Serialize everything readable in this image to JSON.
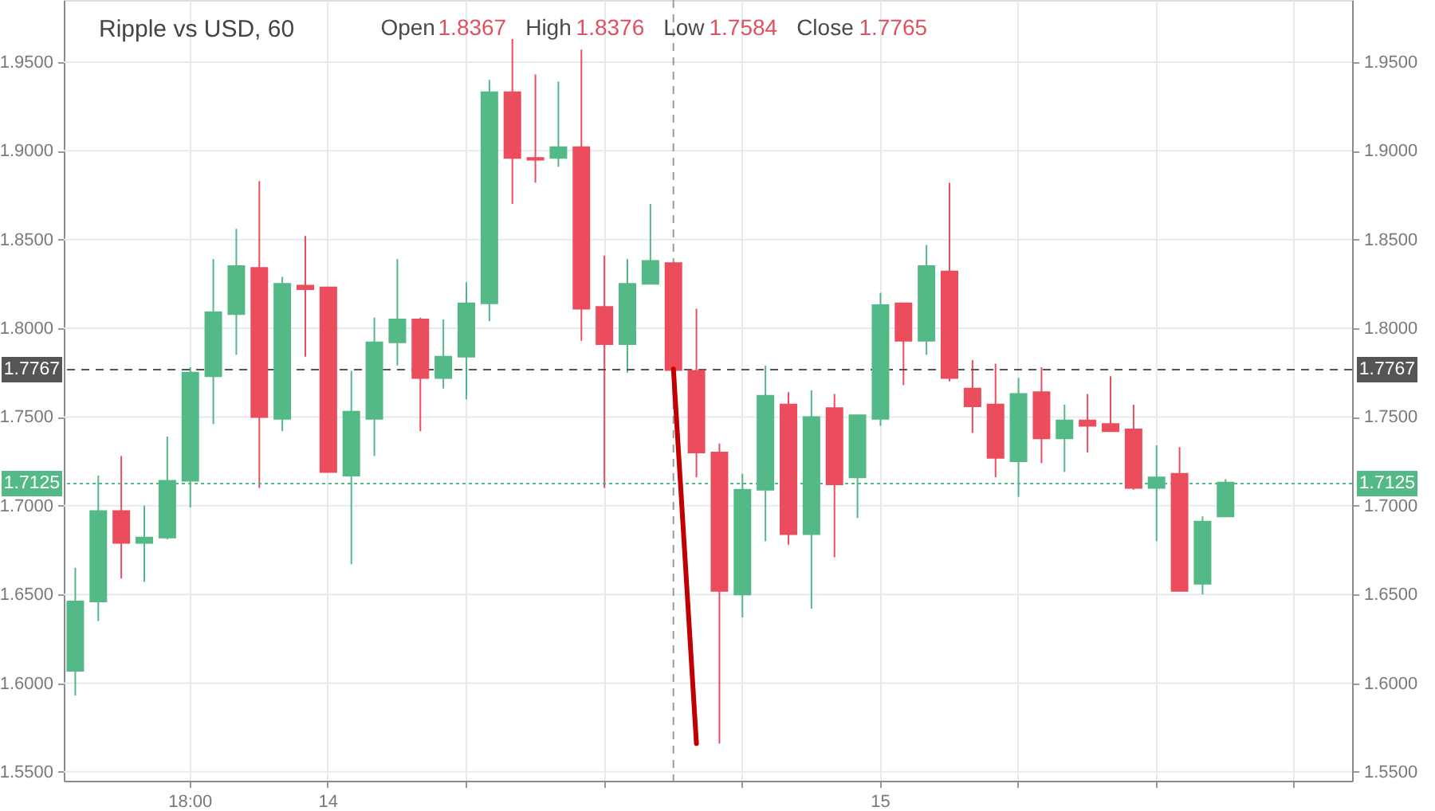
{
  "chart_data": {
    "type": "candlestick",
    "title": "Ripple vs USD, 60",
    "annotations": [
      "Open",
      "1.8367",
      "High",
      "1.8376",
      "Low",
      "1.7584",
      "Close",
      "1.7765"
    ],
    "categories": [
      null,
      null,
      null,
      null,
      null,
      "18:00",
      null,
      null,
      null,
      null,
      null,
      "14",
      null,
      null,
      null,
      null,
      null,
      null,
      null,
      null,
      null,
      null,
      null,
      null,
      null,
      null,
      null,
      null,
      null,
      null,
      null,
      null,
      null,
      null,
      null,
      "15",
      null,
      null,
      null,
      null,
      null,
      null,
      null,
      null,
      null,
      null,
      null,
      null,
      null,
      null,
      null,
      null,
      null,
      null,
      null,
      null
    ],
    "ohlc": [
      [
        1.607,
        1.665,
        1.593,
        1.646
      ],
      [
        1.646,
        1.717,
        1.635,
        1.697
      ],
      [
        1.697,
        1.728,
        1.659,
        1.679
      ],
      [
        1.679,
        1.7,
        1.657,
        1.682
      ],
      [
        1.682,
        1.739,
        1.681,
        1.714
      ],
      [
        1.714,
        1.778,
        1.699,
        1.775
      ],
      [
        1.773,
        1.839,
        1.746,
        1.809
      ],
      [
        1.808,
        1.856,
        1.785,
        1.835
      ],
      [
        1.834,
        1.883,
        1.71,
        1.75
      ],
      [
        1.749,
        1.829,
        1.742,
        1.825
      ],
      [
        1.824,
        1.852,
        1.784,
        1.822
      ],
      [
        1.823,
        1.823,
        1.719,
        1.719
      ],
      [
        1.717,
        1.776,
        1.667,
        1.753
      ],
      [
        1.749,
        1.806,
        1.728,
        1.792
      ],
      [
        1.792,
        1.839,
        1.779,
        1.805
      ],
      [
        1.805,
        1.806,
        1.742,
        1.772
      ],
      [
        1.772,
        1.805,
        1.766,
        1.784
      ],
      [
        1.784,
        1.826,
        1.76,
        1.814
      ],
      [
        1.814,
        1.94,
        1.804,
        1.933
      ],
      [
        1.933,
        1.963,
        1.87,
        1.896
      ],
      [
        1.896,
        1.943,
        1.882,
        1.895
      ],
      [
        1.896,
        1.939,
        1.891,
        1.902
      ],
      [
        1.902,
        1.957,
        1.793,
        1.811
      ],
      [
        1.812,
        1.841,
        1.71,
        1.791
      ],
      [
        1.791,
        1.839,
        1.775,
        1.825
      ],
      [
        1.825,
        1.87,
        1.825,
        1.838
      ],
      [
        1.8367,
        1.8376,
        1.7584,
        1.7765
      ],
      [
        1.776,
        1.811,
        1.716,
        1.73
      ],
      [
        1.73,
        1.735,
        1.566,
        1.652
      ],
      [
        1.65,
        1.718,
        1.637,
        1.709
      ],
      [
        1.709,
        1.779,
        1.68,
        1.762
      ],
      [
        1.757,
        1.764,
        1.678,
        1.684
      ],
      [
        1.684,
        1.765,
        1.642,
        1.75
      ],
      [
        1.755,
        1.763,
        1.671,
        1.712
      ],
      [
        1.716,
        1.751,
        1.693,
        1.751
      ],
      [
        1.749,
        1.82,
        1.745,
        1.813
      ],
      [
        1.814,
        1.814,
        1.768,
        1.793
      ],
      [
        1.793,
        1.847,
        1.785,
        1.835
      ],
      [
        1.832,
        1.882,
        1.77,
        1.772
      ],
      [
        1.766,
        1.782,
        1.741,
        1.756
      ],
      [
        1.757,
        1.78,
        1.716,
        1.727
      ],
      [
        1.725,
        1.772,
        1.705,
        1.763
      ],
      [
        1.764,
        1.778,
        1.724,
        1.738
      ],
      [
        1.738,
        1.757,
        1.719,
        1.748
      ],
      [
        1.748,
        1.763,
        1.73,
        1.745
      ],
      [
        1.746,
        1.773,
        1.742,
        1.742
      ],
      [
        1.743,
        1.757,
        1.709,
        1.71
      ],
      [
        1.71,
        1.734,
        1.68,
        1.716
      ],
      [
        1.718,
        1.733,
        1.652,
        1.652
      ],
      [
        1.656,
        1.694,
        1.65,
        1.691
      ],
      [
        1.694,
        1.715,
        1.694,
        1.713
      ],
      null,
      null,
      null,
      null,
      null
    ],
    "colors": [
      "#53b987",
      "#53b987",
      "#eb4d5c",
      "#53b987",
      "#53b987",
      "#53b987",
      "#53b987",
      "#53b987",
      "#eb4d5c",
      "#53b987",
      "#eb4d5c",
      "#eb4d5c",
      "#53b987",
      "#53b987",
      "#53b987",
      "#eb4d5c",
      "#53b987",
      "#53b987",
      "#53b987",
      "#eb4d5c",
      "#eb4d5c",
      "#53b987",
      "#eb4d5c",
      "#eb4d5c",
      "#53b987",
      "#53b987",
      "#eb4d5c",
      "#eb4d5c",
      "#eb4d5c",
      "#53b987",
      "#53b987",
      "#eb4d5c",
      "#53b987",
      "#eb4d5c",
      "#53b987",
      "#53b987",
      "#eb4d5c",
      "#53b987",
      "#eb4d5c",
      "#eb4d5c",
      "#eb4d5c",
      "#53b987",
      "#eb4d5c",
      "#53b987",
      "#eb4d5c",
      "#eb4d5c",
      "#eb4d5c",
      "#53b987",
      "#eb4d5c",
      "#53b987",
      "#53b987",
      null,
      null,
      null,
      null,
      null
    ],
    "series": [
      {
        "type": "line",
        "color": "#c00000",
        "values": [
          null,
          null,
          null,
          null,
          null,
          null,
          null,
          null,
          null,
          null,
          null,
          null,
          null,
          null,
          null,
          null,
          null,
          null,
          null,
          null,
          null,
          null,
          null,
          null,
          null,
          null,
          1.777,
          1.566,
          null,
          null,
          null,
          null,
          null,
          null,
          null,
          null,
          null,
          null,
          null,
          null,
          null,
          null,
          null,
          null,
          null,
          null,
          null,
          null,
          null,
          null,
          null,
          null,
          null,
          null,
          null,
          null
        ]
      }
    ],
    "ylim": [
      1.545,
      1.985
    ],
    "yticks": [
      {
        "value": 1.55,
        "label": "1.5500"
      },
      {
        "value": 1.6,
        "label": "1.6000"
      },
      {
        "value": 1.65,
        "label": "1.6500"
      },
      {
        "value": 1.7,
        "label": "1.7000"
      },
      {
        "value": 1.75,
        "label": "1.7500"
      },
      {
        "value": 1.8,
        "label": "1.8000"
      },
      {
        "value": 1.85,
        "label": "1.8500"
      },
      {
        "value": 1.9,
        "label": "1.9000"
      },
      {
        "value": 1.95,
        "label": "1.9500"
      }
    ],
    "y2lim": [
      1.545,
      1.985
    ],
    "y2ticks": [
      {
        "value": 1.55,
        "label": "1.5500"
      },
      {
        "value": 1.6,
        "label": "1.6000"
      },
      {
        "value": 1.65,
        "label": "1.6500"
      },
      {
        "value": 1.7,
        "label": "1.7000"
      },
      {
        "value": 1.75,
        "label": "1.7500"
      },
      {
        "value": 1.8,
        "label": "1.8000"
      },
      {
        "value": 1.85,
        "label": "1.8500"
      },
      {
        "value": 1.9,
        "label": "1.9000"
      },
      {
        "value": 1.95,
        "label": "1.9500"
      }
    ],
    "grid": true,
    "ref_lines": [
      {
        "axis": "y",
        "value": 1.7767,
        "label": "1.7767",
        "color": "#555555",
        "line_style": "dashed"
      },
      {
        "axis": "y",
        "value": 1.7125,
        "label": "1.7125",
        "color": "#53b987",
        "line_style": "dotted"
      }
    ]
  }
}
